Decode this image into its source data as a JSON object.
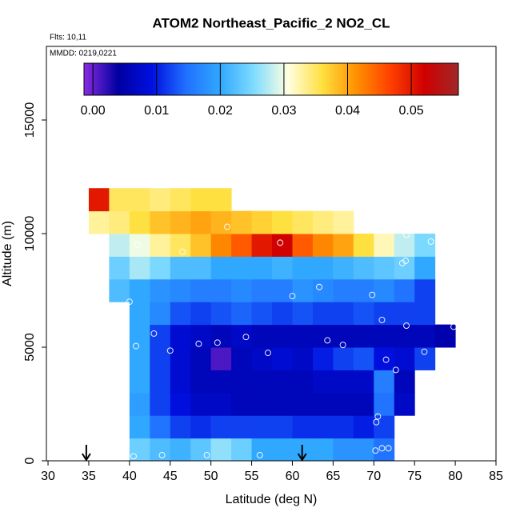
{
  "chart_data": {
    "type": "heatmap",
    "title": "ATOM2 Northeast_Pacific_2 NO2_CL",
    "subtitle": "Flts: 10,11",
    "annotation": "MMDD: 0219,0221",
    "x_label": "Latitude (deg N)",
    "y_label": "Altitude (m)",
    "xlim": [
      29.8,
      85
    ],
    "ylim": [
      0,
      18240
    ],
    "xticks": [
      30,
      35,
      40,
      45,
      50,
      55,
      60,
      65,
      70,
      75,
      80,
      85
    ],
    "yticks": [
      0,
      5000,
      10000,
      15000
    ],
    "x_edges": [
      35,
      37.5,
      40,
      42.5,
      45,
      47.5,
      50,
      52.5,
      55,
      57.5,
      60,
      62.5,
      65,
      67.5,
      70,
      72.5,
      75,
      77.5,
      80
    ],
    "y_edges": [
      0,
      1000,
      2000,
      3000,
      4000,
      5000,
      6000,
      7000,
      8000,
      9000,
      10000,
      11000,
      12000
    ],
    "z": [
      [
        null,
        null,
        0.024,
        0.022,
        0.021,
        0.023,
        0.026,
        0.024,
        0.02,
        0.02,
        0.02,
        0.02,
        0.018,
        0.018,
        0.015,
        null,
        null,
        null
      ],
      [
        null,
        null,
        0.02,
        0.015,
        0.012,
        0.011,
        0.012,
        0.012,
        0.012,
        0.012,
        0.011,
        0.011,
        0.011,
        0.01,
        0.012,
        null,
        null,
        null
      ],
      [
        null,
        null,
        0.019,
        0.012,
        0.009,
        0.007,
        0.007,
        0.006,
        0.006,
        0.006,
        0.006,
        0.006,
        0.006,
        0.006,
        0.015,
        0.007,
        null,
        null
      ],
      [
        null,
        null,
        0.02,
        0.012,
        0.008,
        0.006,
        0.006,
        0.006,
        0.006,
        0.006,
        0.006,
        0.007,
        0.007,
        0.007,
        0.016,
        0.006,
        null,
        null
      ],
      [
        null,
        null,
        0.02,
        0.012,
        0.008,
        0.006,
        0.001,
        0.006,
        0.007,
        0.008,
        0.007,
        0.01,
        0.012,
        0.013,
        0.009,
        0.008,
        0.012,
        null
      ],
      [
        null,
        null,
        0.02,
        0.012,
        0.008,
        0.007,
        0.006,
        0.007,
        0.006,
        0.006,
        0.006,
        0.006,
        0.006,
        0.006,
        0.006,
        0.006,
        0.006,
        0.005
      ],
      [
        null,
        null,
        0.02,
        0.017,
        0.013,
        0.012,
        0.013,
        0.014,
        0.013,
        0.012,
        0.013,
        0.012,
        0.012,
        0.013,
        0.012,
        0.012,
        0.012,
        null
      ],
      [
        null,
        0.022,
        0.02,
        0.018,
        0.017,
        0.016,
        0.016,
        0.017,
        0.016,
        0.016,
        0.018,
        0.017,
        0.016,
        0.016,
        0.017,
        0.015,
        0.012,
        null
      ],
      [
        null,
        0.024,
        0.027,
        0.025,
        0.022,
        0.022,
        0.02,
        0.02,
        0.02,
        0.021,
        0.02,
        0.02,
        0.021,
        0.022,
        0.023,
        0.024,
        0.02,
        null
      ],
      [
        null,
        0.028,
        0.03,
        0.033,
        0.035,
        0.038,
        0.042,
        0.045,
        0.05,
        0.052,
        0.045,
        0.042,
        0.04,
        0.036,
        0.032,
        0.028,
        0.025,
        null
      ],
      [
        0.033,
        0.034,
        0.036,
        0.038,
        0.039,
        0.04,
        0.039,
        0.038,
        0.037,
        0.036,
        0.035,
        0.034,
        0.033,
        null,
        null,
        null,
        null,
        null
      ],
      [
        0.05,
        0.035,
        0.035,
        0.034,
        0.035,
        0.036,
        0.036,
        null,
        null,
        null,
        null,
        null,
        null,
        null,
        null,
        null,
        null,
        null
      ]
    ],
    "clim": [
      -0.0014,
      0.0574
    ],
    "colors": [
      "#8a2be2",
      "#0000a0",
      "#0010e0",
      "#2070ff",
      "#30a8ff",
      "#80dcff",
      "#ffffe0",
      "#ffe040",
      "#ff9000",
      "#ff4000",
      "#d00000",
      "#a02828"
    ],
    "cticks": [
      {
        "value": 0,
        "label": "0.00"
      },
      {
        "value": 0.01,
        "label": "0.01"
      },
      {
        "value": 0.02,
        "label": "0.02"
      },
      {
        "value": 0.03,
        "label": "0.03"
      },
      {
        "value": 0.04,
        "label": "0.04"
      },
      {
        "value": 0.05,
        "label": "0.05"
      }
    ],
    "points": {
      "x": [
        41,
        52,
        58.5,
        46.5,
        40,
        43,
        40.8,
        45,
        48.5,
        50.8,
        54.3,
        57,
        60,
        63.3,
        64.3,
        66.2,
        69.8,
        71,
        74,
        71.5,
        72.7,
        73.5,
        73.9,
        74,
        77,
        78,
        79.8,
        76.2,
        70.5,
        70.3,
        70.2,
        71,
        71.8,
        40.5,
        44,
        49.5,
        56
      ],
      "y": [
        9500,
        10300,
        9600,
        9200,
        7000,
        5600,
        5050,
        4850,
        5150,
        5200,
        5450,
        4750,
        7250,
        7650,
        5300,
        5100,
        7300,
        6200,
        5950,
        4450,
        4000,
        8700,
        8800,
        9950,
        9650,
        9600,
        5900,
        4800,
        1950,
        1700,
        450,
        550,
        550,
        200,
        250,
        250,
        250
      ]
    },
    "arrows_x": [
      34.7,
      61.2
    ]
  }
}
